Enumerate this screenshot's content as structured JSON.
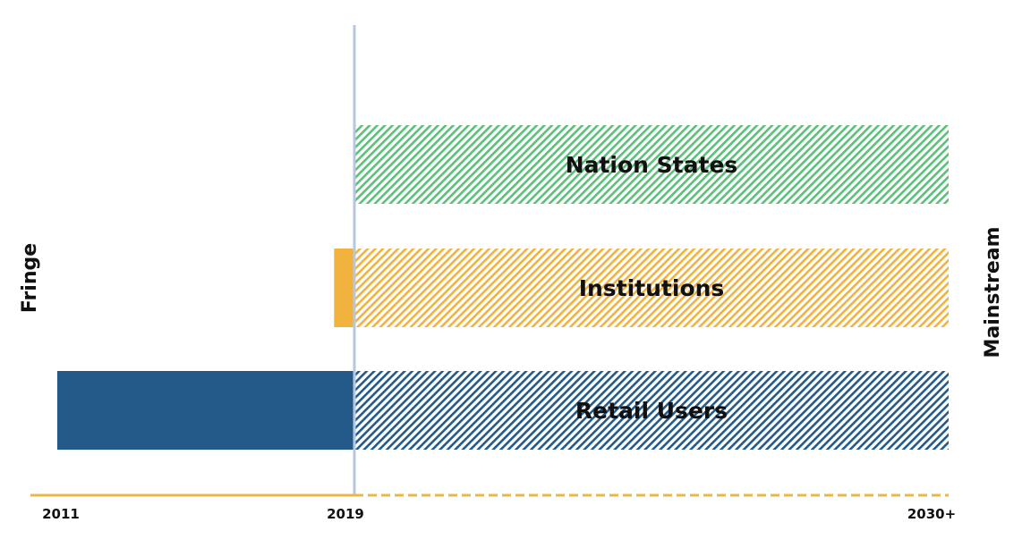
{
  "chart_data": {
    "type": "bar",
    "orientation": "horizontal",
    "y_left_label": "Fringe",
    "y_right_label": "Mainstream",
    "x_ticks": [
      {
        "value": 2011,
        "label": "2011"
      },
      {
        "value": 2019,
        "label": "2019"
      },
      {
        "value": 2030,
        "label": "2030+"
      }
    ],
    "xlim": [
      2011,
      2030
    ],
    "present_marker": 2019,
    "categories": [
      "Nation States",
      "Institutions",
      "Retail Users"
    ],
    "series": [
      {
        "label": "Nation States",
        "start": 2018.6,
        "present": 2019,
        "end": 2030,
        "color": "#5cbf7a"
      },
      {
        "label": "Institutions",
        "start": 2016.9,
        "present": 2019,
        "end": 2030,
        "color": "#f2b23e"
      },
      {
        "label": "Retail Users",
        "start": 2011.0,
        "present": 2019,
        "end": 2030,
        "color": "#245a8a"
      }
    ],
    "timeline_style": {
      "past": "solid",
      "future": "dashed"
    },
    "colors": {
      "timeline": "#e8b84a",
      "present_line": "#b7c8de"
    }
  }
}
